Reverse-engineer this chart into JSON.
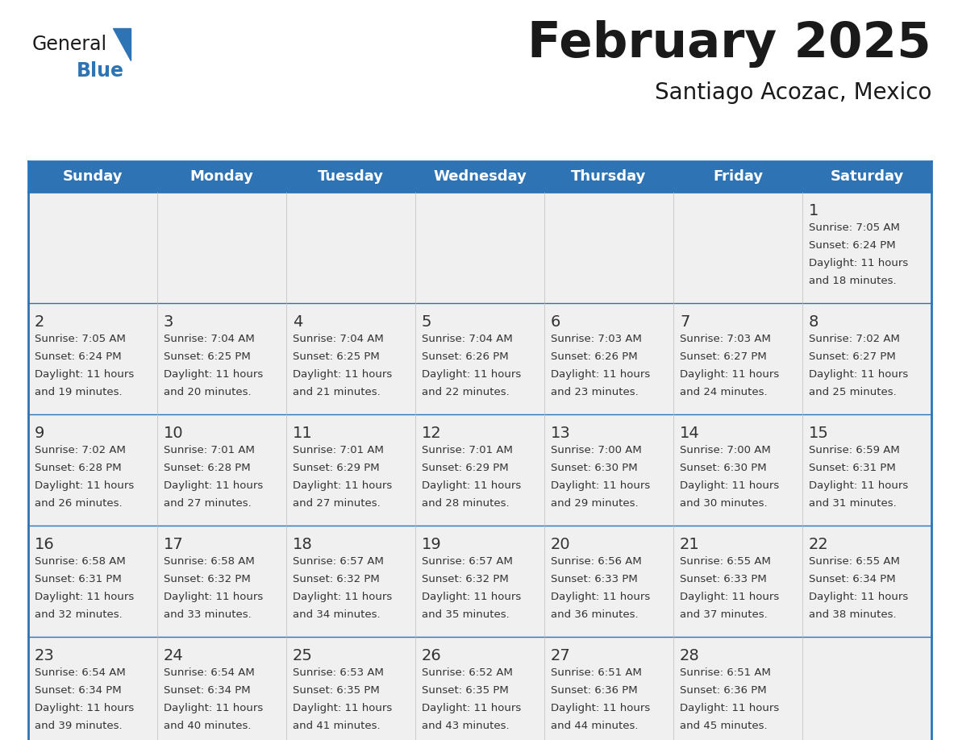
{
  "title": "February 2025",
  "subtitle": "Santiago Acozac, Mexico",
  "days_of_week": [
    "Sunday",
    "Monday",
    "Tuesday",
    "Wednesday",
    "Thursday",
    "Friday",
    "Saturday"
  ],
  "header_bg": "#2E74B5",
  "header_text_color": "#FFFFFF",
  "cell_bg": "#F0F0F0",
  "border_color": "#2E74B5",
  "day_number_color": "#333333",
  "info_text_color": "#333333",
  "title_color": "#1A1A1A",
  "subtitle_color": "#1A1A1A",
  "grid_line_color": "#2E74B5",
  "calendar_data": [
    [
      null,
      null,
      null,
      null,
      null,
      null,
      {
        "day": 1,
        "sunrise": "7:05 AM",
        "sunset": "6:24 PM",
        "daylight": "11 hours and 18 minutes."
      }
    ],
    [
      {
        "day": 2,
        "sunrise": "7:05 AM",
        "sunset": "6:24 PM",
        "daylight": "11 hours and 19 minutes."
      },
      {
        "day": 3,
        "sunrise": "7:04 AM",
        "sunset": "6:25 PM",
        "daylight": "11 hours and 20 minutes."
      },
      {
        "day": 4,
        "sunrise": "7:04 AM",
        "sunset": "6:25 PM",
        "daylight": "11 hours and 21 minutes."
      },
      {
        "day": 5,
        "sunrise": "7:04 AM",
        "sunset": "6:26 PM",
        "daylight": "11 hours and 22 minutes."
      },
      {
        "day": 6,
        "sunrise": "7:03 AM",
        "sunset": "6:26 PM",
        "daylight": "11 hours and 23 minutes."
      },
      {
        "day": 7,
        "sunrise": "7:03 AM",
        "sunset": "6:27 PM",
        "daylight": "11 hours and 24 minutes."
      },
      {
        "day": 8,
        "sunrise": "7:02 AM",
        "sunset": "6:27 PM",
        "daylight": "11 hours and 25 minutes."
      }
    ],
    [
      {
        "day": 9,
        "sunrise": "7:02 AM",
        "sunset": "6:28 PM",
        "daylight": "11 hours and 26 minutes."
      },
      {
        "day": 10,
        "sunrise": "7:01 AM",
        "sunset": "6:28 PM",
        "daylight": "11 hours and 27 minutes."
      },
      {
        "day": 11,
        "sunrise": "7:01 AM",
        "sunset": "6:29 PM",
        "daylight": "11 hours and 27 minutes."
      },
      {
        "day": 12,
        "sunrise": "7:01 AM",
        "sunset": "6:29 PM",
        "daylight": "11 hours and 28 minutes."
      },
      {
        "day": 13,
        "sunrise": "7:00 AM",
        "sunset": "6:30 PM",
        "daylight": "11 hours and 29 minutes."
      },
      {
        "day": 14,
        "sunrise": "7:00 AM",
        "sunset": "6:30 PM",
        "daylight": "11 hours and 30 minutes."
      },
      {
        "day": 15,
        "sunrise": "6:59 AM",
        "sunset": "6:31 PM",
        "daylight": "11 hours and 31 minutes."
      }
    ],
    [
      {
        "day": 16,
        "sunrise": "6:58 AM",
        "sunset": "6:31 PM",
        "daylight": "11 hours and 32 minutes."
      },
      {
        "day": 17,
        "sunrise": "6:58 AM",
        "sunset": "6:32 PM",
        "daylight": "11 hours and 33 minutes."
      },
      {
        "day": 18,
        "sunrise": "6:57 AM",
        "sunset": "6:32 PM",
        "daylight": "11 hours and 34 minutes."
      },
      {
        "day": 19,
        "sunrise": "6:57 AM",
        "sunset": "6:32 PM",
        "daylight": "11 hours and 35 minutes."
      },
      {
        "day": 20,
        "sunrise": "6:56 AM",
        "sunset": "6:33 PM",
        "daylight": "11 hours and 36 minutes."
      },
      {
        "day": 21,
        "sunrise": "6:55 AM",
        "sunset": "6:33 PM",
        "daylight": "11 hours and 37 minutes."
      },
      {
        "day": 22,
        "sunrise": "6:55 AM",
        "sunset": "6:34 PM",
        "daylight": "11 hours and 38 minutes."
      }
    ],
    [
      {
        "day": 23,
        "sunrise": "6:54 AM",
        "sunset": "6:34 PM",
        "daylight": "11 hours and 39 minutes."
      },
      {
        "day": 24,
        "sunrise": "6:54 AM",
        "sunset": "6:34 PM",
        "daylight": "11 hours and 40 minutes."
      },
      {
        "day": 25,
        "sunrise": "6:53 AM",
        "sunset": "6:35 PM",
        "daylight": "11 hours and 41 minutes."
      },
      {
        "day": 26,
        "sunrise": "6:52 AM",
        "sunset": "6:35 PM",
        "daylight": "11 hours and 43 minutes."
      },
      {
        "day": 27,
        "sunrise": "6:51 AM",
        "sunset": "6:36 PM",
        "daylight": "11 hours and 44 minutes."
      },
      {
        "day": 28,
        "sunrise": "6:51 AM",
        "sunset": "6:36 PM",
        "daylight": "11 hours and 45 minutes."
      },
      null
    ]
  ],
  "logo_text1": "General",
  "logo_text2": "Blue",
  "logo_text1_color": "#1A1A1A",
  "logo_text2_color": "#2E74B5",
  "logo_triangle_color": "#2E74B5",
  "figsize": [
    11.88,
    9.18
  ],
  "dpi": 100
}
